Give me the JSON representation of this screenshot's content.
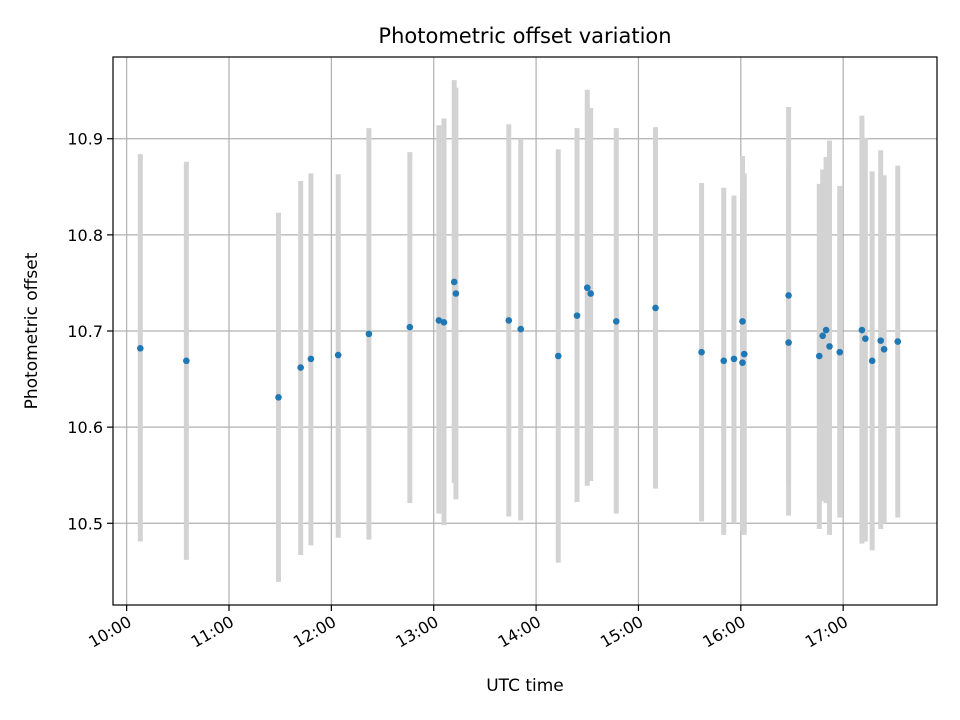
{
  "chart_data": {
    "type": "scatter",
    "title": "Photometric offset variation",
    "xlabel": "UTC time",
    "ylabel": "Photometric offset",
    "xlim": [
      "09:52",
      "17:55"
    ],
    "ylim": [
      10.415,
      10.985
    ],
    "x_ticks": [
      "10:00",
      "11:00",
      "12:00",
      "13:00",
      "14:00",
      "15:00",
      "16:00",
      "17:00"
    ],
    "y_ticks": [
      10.5,
      10.6,
      10.7,
      10.8,
      10.9
    ],
    "y_tick_labels": [
      "10.5",
      "10.6",
      "10.7",
      "10.8",
      "10.9"
    ],
    "grid": true,
    "point_color": "#1f77b4",
    "errorbar_color": "#d3d3d3",
    "points": [
      {
        "t": "10:08",
        "y": 10.682,
        "lo": 10.481,
        "hi": 10.884
      },
      {
        "t": "10:35",
        "y": 10.669,
        "lo": 10.462,
        "hi": 10.876
      },
      {
        "t": "11:29",
        "y": 10.631,
        "lo": 10.439,
        "hi": 10.823
      },
      {
        "t": "11:42",
        "y": 10.662,
        "lo": 10.467,
        "hi": 10.856
      },
      {
        "t": "11:48",
        "y": 10.671,
        "lo": 10.477,
        "hi": 10.864
      },
      {
        "t": "12:04",
        "y": 10.675,
        "lo": 10.485,
        "hi": 10.863
      },
      {
        "t": "12:22",
        "y": 10.697,
        "lo": 10.483,
        "hi": 10.911
      },
      {
        "t": "12:46",
        "y": 10.704,
        "lo": 10.521,
        "hi": 10.886
      },
      {
        "t": "13:03",
        "y": 10.711,
        "lo": 10.51,
        "hi": 10.914
      },
      {
        "t": "13:06",
        "y": 10.709,
        "lo": 10.498,
        "hi": 10.921
      },
      {
        "t": "13:12",
        "y": 10.751,
        "lo": 10.542,
        "hi": 10.961
      },
      {
        "t": "13:13",
        "y": 10.739,
        "lo": 10.525,
        "hi": 10.953
      },
      {
        "t": "13:44",
        "y": 10.711,
        "lo": 10.507,
        "hi": 10.915
      },
      {
        "t": "13:51",
        "y": 10.702,
        "lo": 10.503,
        "hi": 10.9
      },
      {
        "t": "14:13",
        "y": 10.674,
        "lo": 10.459,
        "hi": 10.889
      },
      {
        "t": "14:24",
        "y": 10.716,
        "lo": 10.522,
        "hi": 10.911
      },
      {
        "t": "14:30",
        "y": 10.745,
        "lo": 10.539,
        "hi": 10.951
      },
      {
        "t": "14:32",
        "y": 10.739,
        "lo": 10.544,
        "hi": 10.932
      },
      {
        "t": "14:47",
        "y": 10.71,
        "lo": 10.51,
        "hi": 10.911
      },
      {
        "t": "15:10",
        "y": 10.724,
        "lo": 10.536,
        "hi": 10.912
      },
      {
        "t": "15:37",
        "y": 10.678,
        "lo": 10.502,
        "hi": 10.854
      },
      {
        "t": "15:50",
        "y": 10.669,
        "lo": 10.488,
        "hi": 10.849
      },
      {
        "t": "15:56",
        "y": 10.671,
        "lo": 10.5,
        "hi": 10.841
      },
      {
        "t": "16:01",
        "y": 10.71,
        "lo": 10.538,
        "hi": 10.882
      },
      {
        "t": "16:01",
        "y": 10.667,
        "lo": 10.492,
        "hi": 10.841
      },
      {
        "t": "16:02",
        "y": 10.676,
        "lo": 10.488,
        "hi": 10.864
      },
      {
        "t": "16:28",
        "y": 10.688,
        "lo": 10.508,
        "hi": 10.869
      },
      {
        "t": "16:28",
        "y": 10.737,
        "lo": 10.543,
        "hi": 10.933
      },
      {
        "t": "16:46",
        "y": 10.674,
        "lo": 10.494,
        "hi": 10.853
      },
      {
        "t": "16:48",
        "y": 10.695,
        "lo": 10.523,
        "hi": 10.868
      },
      {
        "t": "16:50",
        "y": 10.701,
        "lo": 10.521,
        "hi": 10.881
      },
      {
        "t": "16:52",
        "y": 10.684,
        "lo": 10.488,
        "hi": 10.898
      },
      {
        "t": "16:58",
        "y": 10.678,
        "lo": 10.506,
        "hi": 10.851
      },
      {
        "t": "17:11",
        "y": 10.701,
        "lo": 10.479,
        "hi": 10.924
      },
      {
        "t": "17:13",
        "y": 10.692,
        "lo": 10.481,
        "hi": 10.901
      },
      {
        "t": "17:17",
        "y": 10.669,
        "lo": 10.472,
        "hi": 10.866
      },
      {
        "t": "17:22",
        "y": 10.69,
        "lo": 10.494,
        "hi": 10.888
      },
      {
        "t": "17:24",
        "y": 10.681,
        "lo": 10.5,
        "hi": 10.862
      },
      {
        "t": "17:32",
        "y": 10.689,
        "lo": 10.506,
        "hi": 10.872
      }
    ]
  }
}
